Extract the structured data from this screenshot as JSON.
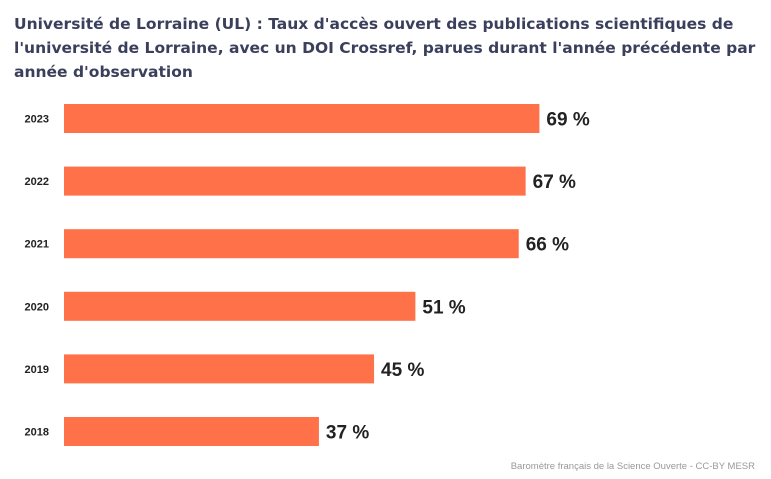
{
  "chart_data": {
    "type": "bar",
    "orientation": "horizontal",
    "title": "Université de Lorraine (UL) : Taux d'accès ouvert des publications scientifiques de l'université de Lorraine, avec un DOI Crossref, parues durant l'année précédente par année d'observation",
    "categories": [
      "2023",
      "2022",
      "2021",
      "2020",
      "2019",
      "2018"
    ],
    "values": [
      69,
      67,
      66,
      51,
      45,
      37
    ],
    "data_labels": [
      "69 %",
      "67 %",
      "66 %",
      "51 %",
      "45 %",
      "37 %"
    ],
    "value_unit": "%",
    "xlim": [
      0,
      100
    ],
    "grid": false,
    "legend": "none",
    "bar_color": "#fe7149"
  },
  "credits": "Baromètre français de la Science Ouverte - CC-BY MESR"
}
